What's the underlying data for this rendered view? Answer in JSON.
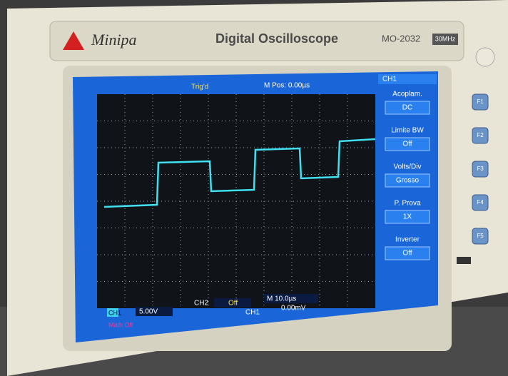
{
  "header": {
    "brand": "Minipa",
    "title": "Digital Oscilloscope",
    "model": "MO-2032",
    "bandwidth": "30MHz"
  },
  "screen": {
    "status": "Trig'd",
    "position": "M Pos: 0.00µs",
    "menu": {
      "title": "CH1",
      "items": [
        {
          "label": "Acoplam.",
          "value": "DC"
        },
        {
          "label": "Limite BW",
          "value": "Off"
        },
        {
          "label": "Volts/Div",
          "value": "Grosso"
        },
        {
          "label": "P. Prova",
          "value": "1X"
        },
        {
          "label": "Inverter",
          "value": "Off"
        }
      ]
    },
    "bottom": {
      "ch1_label": "CH1",
      "ch1_scale": "5.00V",
      "ch2_label": "CH2",
      "ch2_state": "Off",
      "timebase": "M 10.0µs",
      "trig_source": "CH1",
      "trig_level": "0.00mV",
      "math": "Math Off"
    }
  },
  "buttons": [
    "F1",
    "F2",
    "F3",
    "F4",
    "F5"
  ]
}
